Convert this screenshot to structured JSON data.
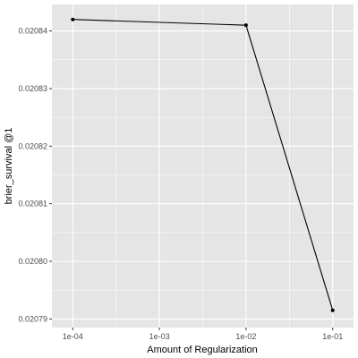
{
  "chart_data": {
    "type": "line",
    "xlabel": "Amount of Regularization",
    "ylabel": "brier_survival @1",
    "x_scale": "log10",
    "xlim": [
      5.75e-05,
      0.174
    ],
    "ylim": [
      0.0207885,
      0.0208446
    ],
    "x_ticks": [
      {
        "value": 0.0001,
        "label": "1e-04"
      },
      {
        "value": 0.001,
        "label": "1e-03"
      },
      {
        "value": 0.01,
        "label": "1e-02"
      },
      {
        "value": 0.1,
        "label": "1e-01"
      }
    ],
    "y_ticks": [
      {
        "value": 0.02079,
        "label": "0.02079"
      },
      {
        "value": 0.0208,
        "label": "0.02080"
      },
      {
        "value": 0.02081,
        "label": "0.02081"
      },
      {
        "value": 0.02082,
        "label": "0.02082"
      },
      {
        "value": 0.02083,
        "label": "0.02083"
      },
      {
        "value": 0.02084,
        "label": "0.02084"
      }
    ],
    "grid": true,
    "background": "#e5e5e5",
    "gridline_color": "#ffffff",
    "line_color": "#000000",
    "series": [
      {
        "x": [
          0.0001,
          0.01,
          0.1
        ],
        "y": [
          0.020842,
          0.020841,
          0.0207915
        ]
      }
    ]
  }
}
